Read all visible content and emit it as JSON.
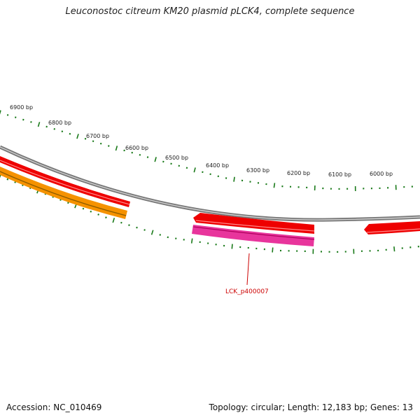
{
  "map": {
    "title": "Leuconostoc citreum KM20 plasmid pLCK4, complete sequence",
    "accession": "Accession: NC_010469",
    "topology": "Topology: circular; Length: 12,183 bp; Genes: 13",
    "colors": {
      "backbone": "#8c8c8c",
      "tick": "#1a7a1a",
      "gene_red": "#ee0000",
      "gene_orange": "#f59200",
      "gene_pink": "#e8359c",
      "label_red": "#cc0000"
    },
    "scale_labels": [
      "6900 bp",
      "6800 bp",
      "6700 bp",
      "6600 bp",
      "6500 bp",
      "6400 bp",
      "6300 bp",
      "6200 bp",
      "6100 bp",
      "6000 bp"
    ],
    "gene_labels": [
      "LCK_p400007"
    ]
  }
}
